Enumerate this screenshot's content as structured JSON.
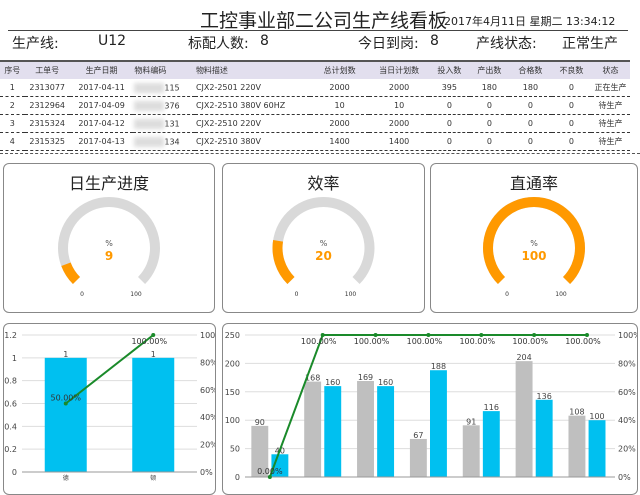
{
  "header": {
    "title": "工控事业部二公司生产线看板",
    "datetime": "2017年4月11日 星期二 13:34:12"
  },
  "info": {
    "line_label": "生产线:",
    "line_value": "U12",
    "staff_label": "标配人数:",
    "staff_value": "8",
    "present_label": "今日到岗:",
    "present_value": "8",
    "status_label": "产线状态:",
    "status_value": "正常生产"
  },
  "table": {
    "headers": [
      "序号",
      "工单号",
      "生产日期",
      "物料编码",
      "物料描述",
      "总计划数",
      "当日计划数",
      "投入数",
      "产出数",
      "合格数",
      "不良数",
      "状态"
    ],
    "rows": [
      [
        "1",
        "2313077",
        "2017-04-11",
        "115",
        "CJX2-2501 220V",
        "2000",
        "2000",
        "395",
        "180",
        "180",
        "0",
        "正在生产"
      ],
      [
        "2",
        "2312964",
        "2017-04-09",
        "376",
        "CJX2-2510 380V 60HZ",
        "10",
        "10",
        "0",
        "0",
        "0",
        "0",
        "待生产"
      ],
      [
        "3",
        "2315324",
        "2017-04-12",
        "131",
        "CJX2-2510 220V",
        "2000",
        "2000",
        "0",
        "0",
        "0",
        "0",
        "待生产"
      ],
      [
        "4",
        "2315325",
        "2017-04-13",
        "134",
        "CJX2-2510 380V",
        "1400",
        "1400",
        "0",
        "0",
        "0",
        "0",
        "待生产"
      ]
    ]
  },
  "gauges": [
    {
      "title": "日生产进度",
      "unit": "%",
      "value": 9,
      "min": "0",
      "max": "100"
    },
    {
      "title": "效率",
      "unit": "%",
      "value": 20,
      "min": "0",
      "max": "100"
    },
    {
      "title": "直通率",
      "unit": "%",
      "value": 100,
      "min": "0",
      "max": "100"
    }
  ],
  "colors": {
    "accent": "#ff9900",
    "track": "#d9d9d9",
    "bar_blue": "#00c0f0",
    "bar_gray": "#bfbfbf",
    "line": "#1a8a2a"
  },
  "chart_data": [
    {
      "type": "bar",
      "categories": [
        "德",
        "顿"
      ],
      "values": [
        1,
        1
      ],
      "line_values": [
        50,
        100
      ],
      "line_labels": [
        "50.00%",
        "100.00%"
      ],
      "ylim": [
        0,
        1.2
      ],
      "yticks": [
        "0",
        "0.2",
        "0.4",
        "0.6",
        "0.8",
        "1",
        "1.2"
      ],
      "y2ticks": [
        "0%",
        "20%",
        "40%",
        "60%",
        "80%",
        "100%"
      ]
    },
    {
      "type": "bar",
      "categories": [
        "",
        "",
        "",
        "",
        "",
        "",
        ""
      ],
      "series": [
        {
          "values": [
            90,
            168,
            169,
            67,
            91,
            204,
            108
          ]
        },
        {
          "values": [
            40,
            160,
            160,
            188,
            116,
            136,
            100
          ]
        }
      ],
      "line_values": [
        0,
        100,
        100,
        100,
        100,
        100,
        100
      ],
      "line_labels": [
        "0.00%",
        "100.00%",
        "100.00%",
        "100.00%",
        "100.00%",
        "100.00%",
        "100.00%"
      ],
      "ylim": [
        0,
        250
      ],
      "yticks": [
        "0",
        "50",
        "100",
        "150",
        "200",
        "250"
      ],
      "y2ticks": [
        "0%",
        "20%",
        "40%",
        "60%",
        "80%",
        "100%"
      ]
    }
  ]
}
